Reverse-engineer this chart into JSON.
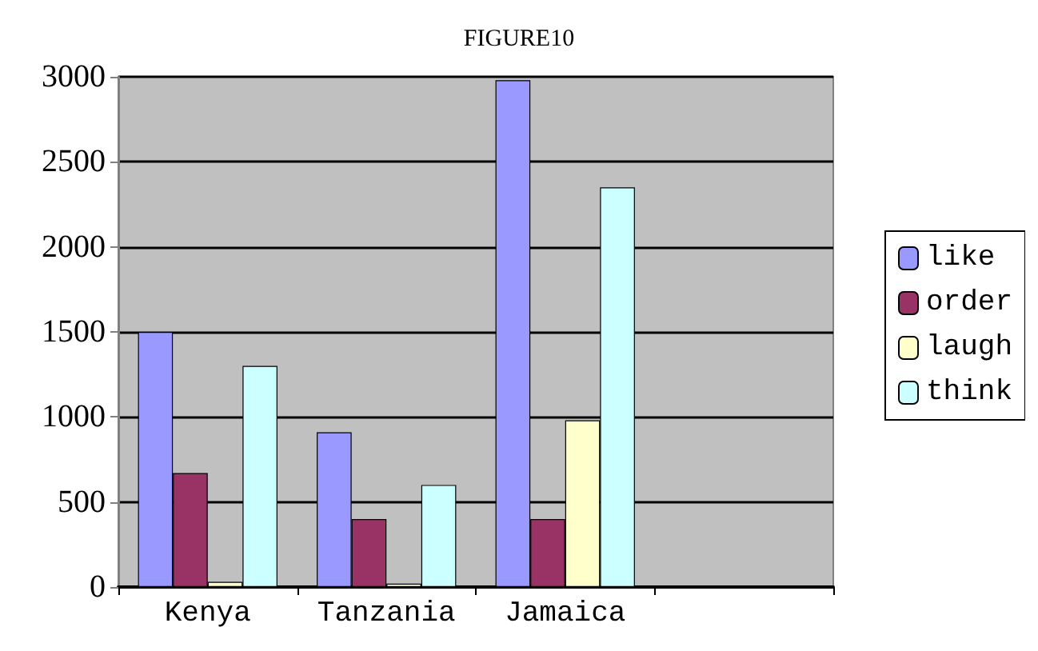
{
  "chart_data": {
    "type": "bar",
    "title": "FIGURE10",
    "categories": [
      "Kenya",
      "Tanzania",
      "Jamaica",
      null
    ],
    "series": [
      {
        "name": "like",
        "color": "#9999ff",
        "values": [
          1500,
          910,
          2980,
          null
        ]
      },
      {
        "name": "order",
        "color": "#993366",
        "values": [
          670,
          400,
          400,
          null
        ]
      },
      {
        "name": "laugh",
        "color": "#ffffcc",
        "values": [
          30,
          20,
          980,
          null
        ]
      },
      {
        "name": "think",
        "color": "#ccffff",
        "values": [
          1300,
          600,
          2350,
          null
        ]
      }
    ],
    "ylim": [
      0,
      3000
    ],
    "yticks": [
      0,
      500,
      1000,
      1500,
      2000,
      2500,
      3000
    ],
    "grid": "y",
    "legend": "right"
  }
}
